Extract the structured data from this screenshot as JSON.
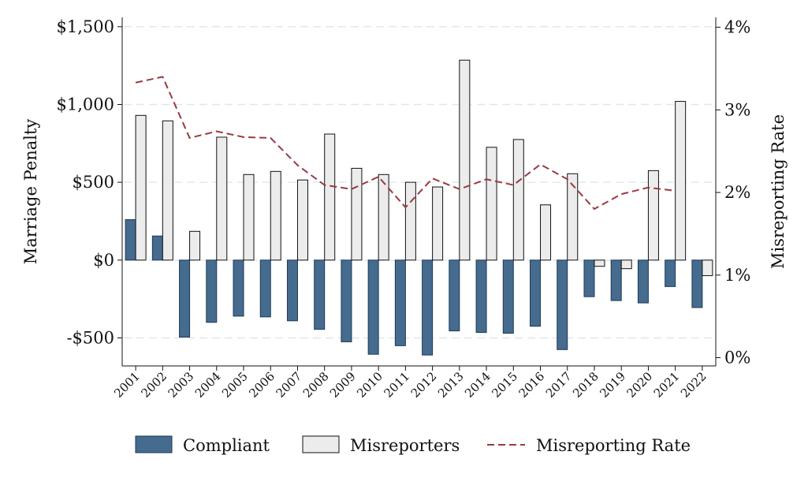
{
  "chart_data": {
    "type": "bar",
    "categories": [
      "2001",
      "2002",
      "2003",
      "2004",
      "2005",
      "2006",
      "2007",
      "2008",
      "2009",
      "2010",
      "2011",
      "2012",
      "2013",
      "2014",
      "2015",
      "2016",
      "2017",
      "2018",
      "2019",
      "2020",
      "2021",
      "2022"
    ],
    "series": [
      {
        "name": "Compliant",
        "axis": "left",
        "color": "#456b8f",
        "values": [
          260,
          155,
          -495,
          -400,
          -360,
          -365,
          -390,
          -445,
          -525,
          -605,
          -550,
          -610,
          -455,
          -465,
          -470,
          -425,
          -575,
          -235,
          -260,
          -275,
          -170,
          -305
        ]
      },
      {
        "name": "Misreporters",
        "axis": "left",
        "color": "#ececec",
        "values": [
          930,
          895,
          185,
          790,
          550,
          570,
          515,
          810,
          590,
          550,
          500,
          470,
          1285,
          725,
          775,
          355,
          555,
          -40,
          -55,
          575,
          1020,
          -100
        ]
      },
      {
        "name": "Misreporting Rate",
        "axis": "right",
        "type": "line",
        "style": "dashed",
        "color": "#9a3a42",
        "values": [
          3.33,
          3.4,
          2.66,
          2.74,
          2.67,
          2.66,
          2.33,
          2.09,
          2.04,
          2.19,
          1.82,
          2.17,
          2.04,
          2.16,
          2.09,
          2.34,
          2.16,
          1.8,
          1.98,
          2.06,
          2.02,
          null
        ]
      }
    ],
    "ylabel": "Marriage Penalty",
    "y2label": "Misreporting Rate",
    "ylim": [
      -680,
      1560
    ],
    "y2lim": [
      -0.1,
      4.12
    ],
    "yticks": [
      -500,
      0,
      500,
      1000,
      1500
    ],
    "ytick_labels": [
      "-$500",
      "$0",
      "$500",
      "$1,000",
      "$1,500"
    ],
    "y2ticks": [
      0,
      1,
      2,
      3,
      4
    ],
    "y2tick_labels": [
      "0%",
      "1%",
      "2%",
      "3%",
      "4%"
    ],
    "grid": true,
    "legend": {
      "position": "bottom",
      "entries": [
        "Compliant",
        "Misreporters",
        "Misreporting Rate"
      ]
    }
  }
}
